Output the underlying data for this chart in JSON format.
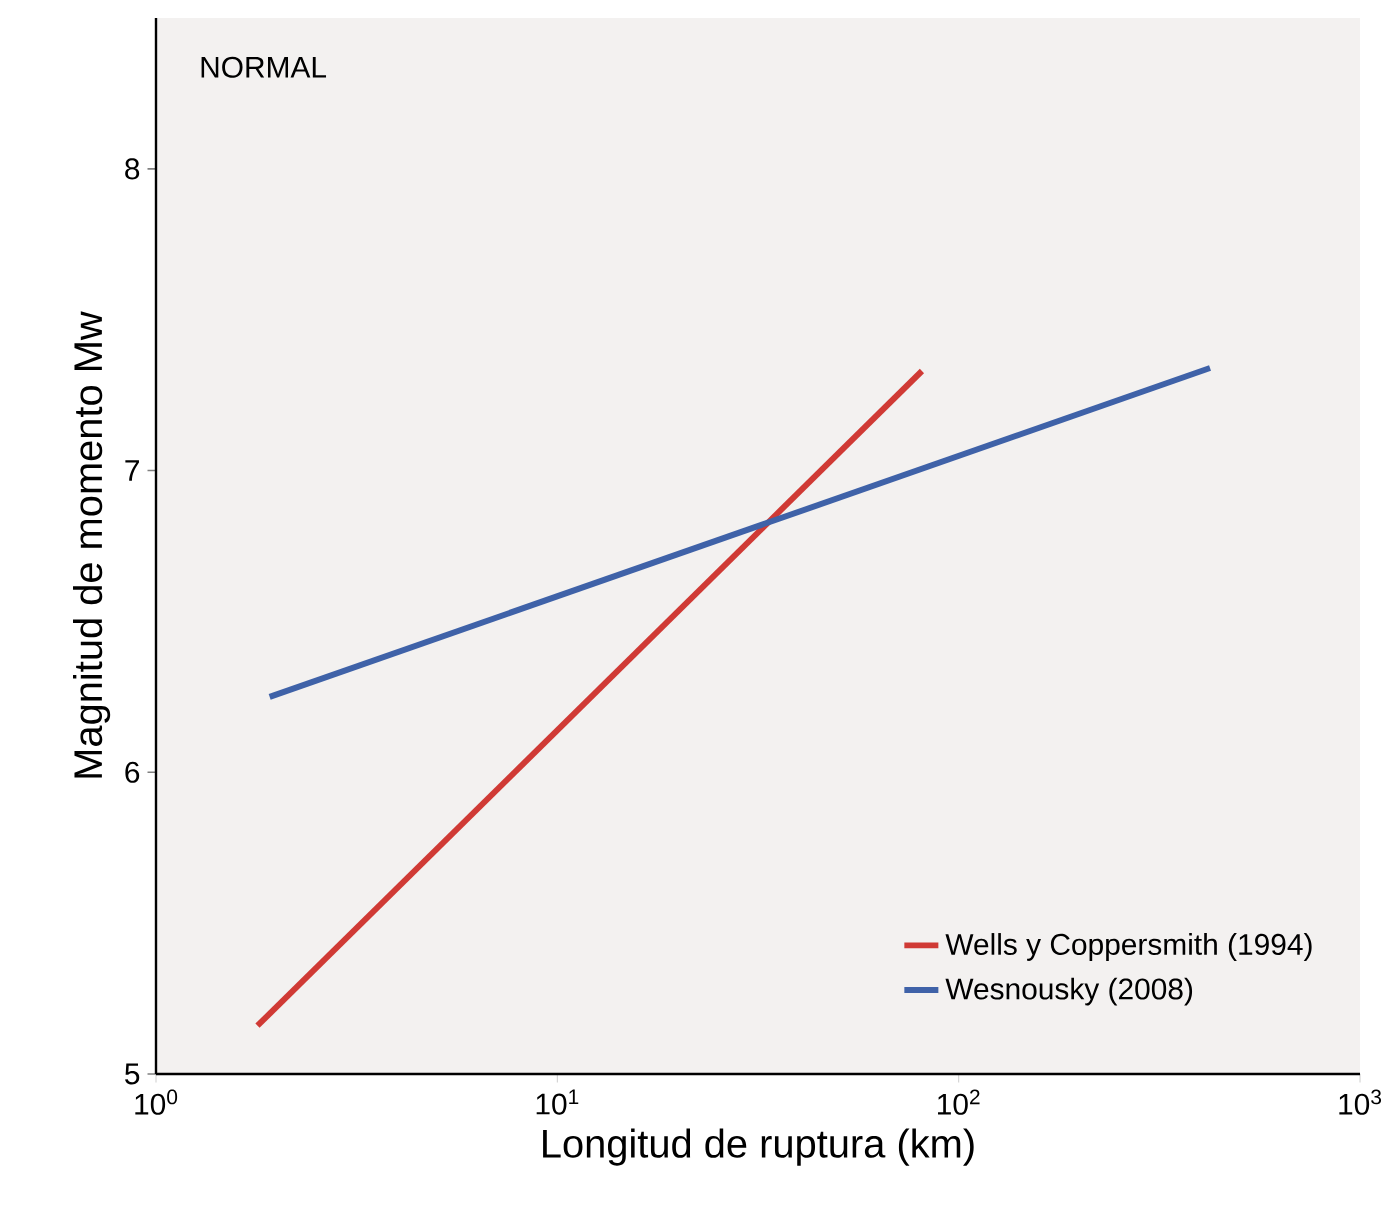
{
  "chart_data": {
    "type": "line",
    "xlabel": "Longitud de ruptura (km)",
    "ylabel": "Magnitud de momento Mw",
    "annotations": [
      "NORMAL"
    ],
    "log": "x",
    "xlim": [
      1,
      1000
    ],
    "ylim": [
      5,
      8.5
    ],
    "xticks": [
      {
        "value": 1,
        "label": "10$^{0}$"
      },
      {
        "value": 10,
        "label": "10$^{1}$"
      },
      {
        "value": 100,
        "label": "10$^{2}$"
      },
      {
        "value": 1000,
        "label": "10$^{3}$"
      }
    ],
    "yticks": [
      5,
      6,
      7,
      8
    ],
    "grid": false,
    "legend": "bottom right",
    "marker": "none",
    "line_style": "solid",
    "series": [
      {
        "name": "Wells y Coppersmith (1994)",
        "color": "#d03a35",
        "x": [
          1.79,
          81
        ],
        "values": [
          5.16,
          7.33
        ]
      },
      {
        "name": "Wesnousky (2008)",
        "color": "#3f62a8",
        "x": [
          1.92,
          423
        ],
        "values": [
          6.25,
          7.34
        ]
      }
    ]
  }
}
